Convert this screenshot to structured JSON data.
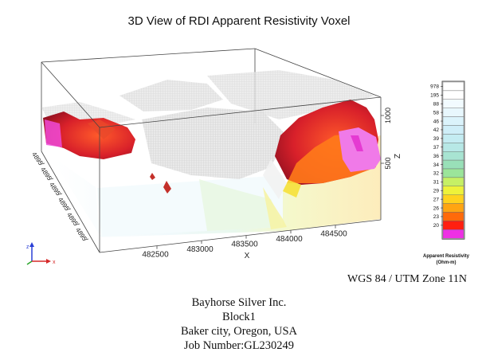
{
  "title": "3D View of RDI Apparent Resistivity Voxel",
  "axes": {
    "x_label": "X",
    "x_ticks": [
      "482500",
      "483000",
      "483500",
      "484000",
      "484500"
    ],
    "z_label": "Z",
    "z_ticks": [
      "1000",
      "500"
    ],
    "y_ticks": [
      "4895",
      "4895",
      "4895",
      "4895",
      "4895",
      "4895"
    ]
  },
  "legend": {
    "title_line1": "Apparent Resistivity",
    "title_line2": "(Ohm-m)",
    "entries": [
      {
        "label": "978",
        "color": "#ffffff"
      },
      {
        "label": "195",
        "color": "#ffffff"
      },
      {
        "label": "88",
        "color": "#f2fbff"
      },
      {
        "label": "58",
        "color": "#e8f7fd"
      },
      {
        "label": "46",
        "color": "#dbf3fb"
      },
      {
        "label": "42",
        "color": "#cfeef8"
      },
      {
        "label": "39",
        "color": "#c4ecf2"
      },
      {
        "label": "37",
        "color": "#b7e8e6"
      },
      {
        "label": "36",
        "color": "#a8e4d2"
      },
      {
        "label": "34",
        "color": "#99e0b8"
      },
      {
        "label": "32",
        "color": "#9be59a"
      },
      {
        "label": "31",
        "color": "#c6f065"
      },
      {
        "label": "29",
        "color": "#eef23a"
      },
      {
        "label": "27",
        "color": "#ffd21e"
      },
      {
        "label": "26",
        "color": "#ffa512"
      },
      {
        "label": "23",
        "color": "#ff6a0a"
      },
      {
        "label": "20",
        "color": "#ff1f10"
      },
      {
        "label": "",
        "color": "#ee30e4"
      }
    ]
  },
  "projection": "WGS 84 / UTM Zone 11N",
  "info": {
    "company": "Bayhorse Silver Inc.",
    "block": "Block1",
    "location": "Baker city, Oregon, USA",
    "job": "Job Number:GL230249"
  }
}
